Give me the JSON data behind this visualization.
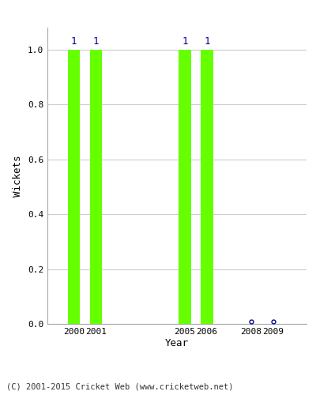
{
  "years": [
    2000,
    2001,
    2005,
    2006,
    2008,
    2009
  ],
  "values": [
    1,
    1,
    1,
    1,
    0,
    0
  ],
  "bar_years": [
    2000,
    2001,
    2005,
    2006
  ],
  "bar_values": [
    1,
    1,
    1,
    1
  ],
  "zero_years": [
    2008,
    2009
  ],
  "zero_values": [
    0,
    0
  ],
  "bar_color": "#66ff00",
  "bar_edge_color": "#66ff00",
  "annotation_color": "#00008b",
  "zero_marker_color": "#00008b",
  "ylabel": "Wickets",
  "xlabel": "Year",
  "ylim": [
    0.0,
    1.08
  ],
  "yticks": [
    0.0,
    0.2,
    0.4,
    0.6,
    0.8,
    1.0
  ],
  "background_color": "#ffffff",
  "grid_color": "#cccccc",
  "bar_width": 0.55,
  "footer": "(C) 2001-2015 Cricket Web (www.cricketweb.net)",
  "xlim": [
    1998.8,
    2010.5
  ]
}
